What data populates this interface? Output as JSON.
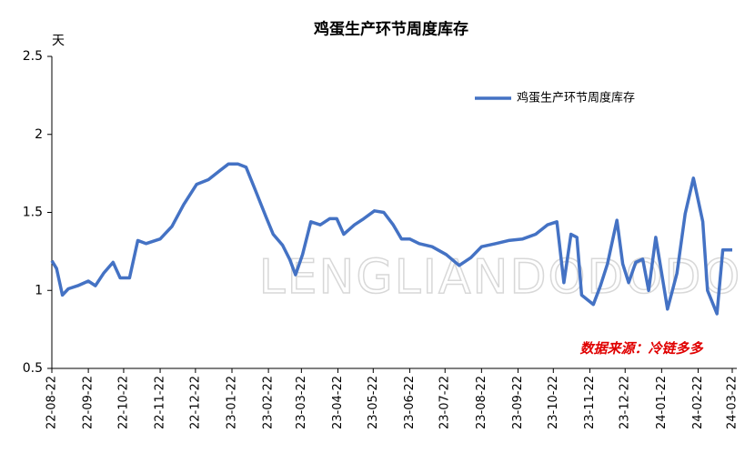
{
  "chart_data": {
    "type": "line",
    "title": "鸡蛋生产环节周度库存",
    "y_unit": "天",
    "source": "数据来源：冷链多多",
    "watermark": "LENGLIANDODODO",
    "x": [
      "22-08-22",
      "22-08-26",
      "22-08-31",
      "22-09-05",
      "22-09-13",
      "22-09-22",
      "22-09-28",
      "22-10-05",
      "22-10-13",
      "22-10-19",
      "22-10-27",
      "22-11-03",
      "22-11-10",
      "22-11-22",
      "22-12-02",
      "22-12-12",
      "22-12-23",
      "23-01-02",
      "23-01-12",
      "23-01-19",
      "23-01-27",
      "23-02-03",
      "23-02-11",
      "23-02-20",
      "23-02-26",
      "23-03-06",
      "23-03-12",
      "23-03-17",
      "23-03-23",
      "23-03-30",
      "23-04-07",
      "23-04-15",
      "23-04-21",
      "23-04-27",
      "23-05-06",
      "23-05-14",
      "23-05-23",
      "23-05-31",
      "23-06-08",
      "23-06-15",
      "23-06-22",
      "23-06-30",
      "23-07-11",
      "23-07-23",
      "23-08-03",
      "23-08-13",
      "23-08-22",
      "23-09-03",
      "23-09-14",
      "23-09-26",
      "23-10-07",
      "23-10-17",
      "23-10-25",
      "23-10-31",
      "23-11-06",
      "23-11-11",
      "23-11-15",
      "23-11-25",
      "23-12-01",
      "23-12-07",
      "23-12-15",
      "23-12-20",
      "23-12-25",
      "23-12-31",
      "24-01-06",
      "24-01-11",
      "24-01-17",
      "24-01-22",
      "24-01-27",
      "24-02-04",
      "24-02-11",
      "24-02-18",
      "24-02-26",
      "24-03-01",
      "24-03-09",
      "24-03-14",
      "24-03-22"
    ],
    "series": [
      {
        "name": "鸡蛋生产环节周度库存",
        "color": "#4472c4",
        "values": [
          1.19,
          1.14,
          0.97,
          1.01,
          1.03,
          1.06,
          1.03,
          1.11,
          1.18,
          1.08,
          1.08,
          1.32,
          1.3,
          1.33,
          1.41,
          1.55,
          1.68,
          1.71,
          1.77,
          1.81,
          1.81,
          1.79,
          1.64,
          1.47,
          1.36,
          1.29,
          1.2,
          1.1,
          1.23,
          1.44,
          1.42,
          1.46,
          1.46,
          1.36,
          1.42,
          1.46,
          1.51,
          1.5,
          1.42,
          1.33,
          1.33,
          1.3,
          1.28,
          1.23,
          1.16,
          1.21,
          1.28,
          1.3,
          1.32,
          1.33,
          1.36,
          1.42,
          1.44,
          1.05,
          1.36,
          1.34,
          0.97,
          0.91,
          1.03,
          1.17,
          1.45,
          1.17,
          1.05,
          1.18,
          1.2,
          1.0,
          1.34,
          1.11,
          0.88,
          1.11,
          1.49,
          1.72,
          1.44,
          1.0,
          0.85,
          1.26,
          1.26
        ]
      }
    ],
    "xlim": [
      "22-08-22",
      "24-03-22"
    ],
    "xticks": [
      "22-08-22",
      "22-09-22",
      "22-10-22",
      "22-11-22",
      "22-12-22",
      "23-01-22",
      "23-02-22",
      "23-03-22",
      "23-04-22",
      "23-05-22",
      "23-06-22",
      "23-07-22",
      "23-08-22",
      "23-09-22",
      "23-10-22",
      "23-11-22",
      "23-12-22",
      "24-01-22",
      "24-02-22",
      "24-03-22"
    ],
    "ylim": [
      0.5,
      2.5
    ],
    "yticks": [
      0.5,
      1,
      1.5,
      2,
      2.5
    ],
    "grid": false,
    "legend": "top-right"
  }
}
